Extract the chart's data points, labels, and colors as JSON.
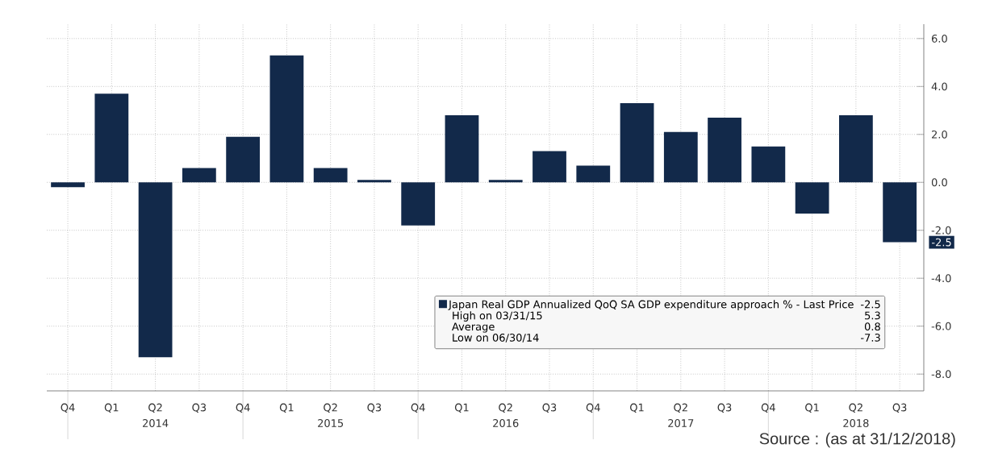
{
  "chart_data": {
    "type": "bar",
    "categories": [
      "Q4",
      "Q1",
      "Q2",
      "Q3",
      "Q4",
      "Q1",
      "Q2",
      "Q3",
      "Q4",
      "Q1",
      "Q2",
      "Q3",
      "Q4",
      "Q1",
      "Q2",
      "Q3",
      "Q4",
      "Q1",
      "Q2",
      "Q3"
    ],
    "series": [
      {
        "name": "Japan Real GDP Annualized QoQ SA GDP expenditure approach % - Last Price",
        "color": "#12294a",
        "values": [
          -0.2,
          3.7,
          -7.3,
          0.6,
          1.9,
          5.3,
          0.6,
          0.1,
          -1.8,
          2.8,
          0.1,
          1.3,
          0.7,
          3.3,
          2.1,
          2.7,
          1.5,
          -1.3,
          2.8,
          -2.5
        ]
      }
    ],
    "ylim": [
      -8.7,
      6.6
    ],
    "yticks": [
      {
        "value": -8,
        "label": "-8.0"
      },
      {
        "value": -6,
        "label": "-6.0"
      },
      {
        "value": -4,
        "label": "-4.0"
      },
      {
        "value": -2,
        "label": "-2.0"
      },
      {
        "value": 0,
        "label": "0.0"
      },
      {
        "value": 2,
        "label": "2.0"
      },
      {
        "value": 4,
        "label": "4.0"
      },
      {
        "value": 6,
        "label": "6.0"
      }
    ],
    "grid": true,
    "legend": "bottom right",
    "annotations": [
      "2014",
      "2015",
      "2016",
      "2017",
      "2018",
      "Source : (as at 31/12/2018)",
      "-2.5",
      "-2.5",
      "High on 03/31/15",
      "5.3",
      "Average",
      "0.8",
      "Low on 06/30/14",
      "-7.3"
    ]
  }
}
